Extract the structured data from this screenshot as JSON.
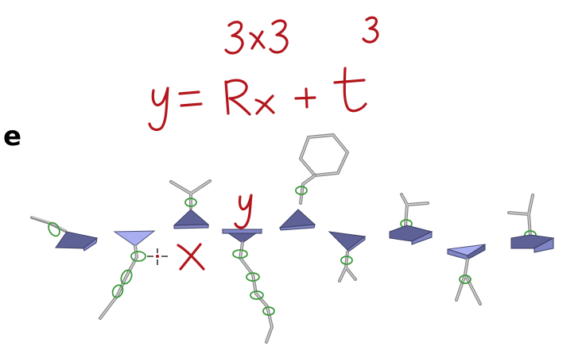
{
  "panel_label": "e",
  "annotations": {
    "equation": "y = Rx + t",
    "rotation_dims": "3×3",
    "translation_dims": "3",
    "input_label": "x",
    "output_label": "y"
  },
  "colors": {
    "ink": "#b3171d",
    "frame_top": "#a9aef0",
    "frame_side": "#5e6196",
    "torsion_ring": "#3e9a3e",
    "side_chain": "#8a8a8a"
  },
  "icons": [
    "crosshair-cursor-icon"
  ]
}
